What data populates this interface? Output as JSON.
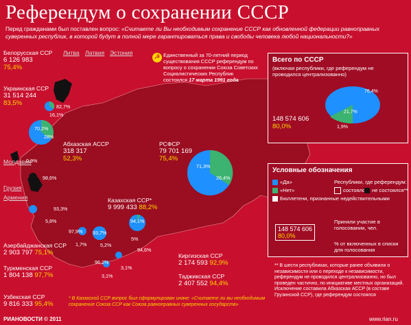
{
  "title": "Референдум о сохранении СССР",
  "question_intro": "Перед гражданами был поставлен вопрос: ",
  "question_text": "«Считаете ли Вы необходимым сохранение СССР как обновленной федерации равноправных суверенных республик, в которой будут в полной мере гарантироваться права и свободы человека любой национальности?»",
  "sun_note": {
    "text": "Единственный за 70-летний период существования СССР референдум по вопросу о сохранении Союза Советских Социалистических Республик состоялся",
    "date": "17 марта 1991 года"
  },
  "republics": [
    {
      "name": "Белорусская ССР",
      "voters": "6 126 983",
      "pct": "75,4%"
    },
    {
      "name": "Украинская ССР",
      "voters": "31 514 244",
      "pct": "83,5%"
    },
    {
      "name": "Абхазская АССР",
      "voters": "318 317",
      "pct": "52,3%"
    },
    {
      "name": "РСФСР",
      "voters": "79 701 169",
      "pct": "75,4%"
    },
    {
      "name": "Казахская ССР*",
      "voters": "9 999 433",
      "pct": "88,2%"
    },
    {
      "name": "Азербайджанская ССР",
      "voters": "2 903 797",
      "pct": "75,1%"
    },
    {
      "name": "Туркменская ССР",
      "voters": "1 804 138",
      "pct": "97,7%"
    },
    {
      "name": "Узбекская ССР",
      "voters": "9 816 333",
      "pct": "95,4%"
    },
    {
      "name": "Киргизская ССР",
      "voters": "2 174 593",
      "pct": "92,9%"
    },
    {
      "name": "Таджикская ССР",
      "voters": "2 407 552",
      "pct": "94,4%"
    }
  ],
  "abstained": [
    "Литва",
    "Латвия",
    "Эстония",
    "Молдавия",
    "Грузия",
    "Армения"
  ],
  "pie_labels": {
    "ukraine_yes": "70,2%",
    "ukraine_no": "28%",
    "belarus_yes": "82,7%",
    "belarus_no": "16,1%",
    "rsfsr_yes": "71,3%",
    "rsfsr_no": "26,4%",
    "kaz_yes": "94,1%",
    "kaz_no": "5%",
    "abkh_yes": "98,6%",
    "abkh_no": "0,9%",
    "azer_yes": "93,3%",
    "azer_no": "5,8%",
    "turk_yes": "97,9%",
    "turk_no": "1,7%",
    "uzb_yes": "93,7%",
    "uzb_no": "5,2%",
    "kirg_yes": "94,6%",
    "kirg_no": "3,1%",
    "tadj_yes": "96,2%",
    "tadj_no": "3,1%"
  },
  "total": {
    "title": "Всего по СССР",
    "subtitle": "(включая республики, где референдум не проводился централизованно)",
    "voters": "148 574 606",
    "pct": "80,0%",
    "yes": "76,4%",
    "no": "21,7%",
    "spoiled": "1,9%"
  },
  "legend": {
    "title": "Условные обозначения",
    "yes": "«Да»",
    "no": "«Нет»",
    "spoiled": "Бюллетени, признанные недействительными",
    "held_header": "Республики, где референдум:",
    "held": "состоялся",
    "not_held": "не состоялся**",
    "sample_voters": "148 574 606",
    "sample_pct": "80,0%",
    "voters_caption": "Приняли участие в голосовании, чел.",
    "pct_caption": "% от включенных в списки для голосования"
  },
  "footnote_kaz": "* В Казахской ССР вопрос был сформулирован иначе: «Считаете ли вы необходимым сохранение Союза ССР как Союза равноправных суверенных государств»",
  "footnote_double": "** В шести республиках, которые ранее объявили о независимости или о переходе к независимости, референдум не проводился централизованно, но был проведен частично, по инициативе местных организаций. Исключение составила Абхазская АССР (в составе Грузинской ССР), где референдум состоялся",
  "footer_brand": "РИАНОВОСТИ © 2011",
  "footer_url": "www.rian.ru",
  "colors": {
    "background": "#c8102e",
    "yes": "#1e90ff",
    "no": "#3cb371",
    "accent": "#ffd700"
  }
}
